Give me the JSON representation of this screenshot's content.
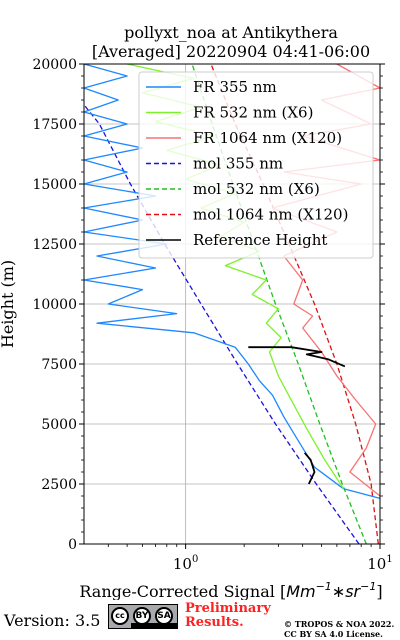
{
  "chart_data": {
    "type": "line",
    "title_line1": "pollyxt_noa at Antikythera",
    "title_line2": "[Averaged] 20220904 04:41-06:00",
    "xlabel_main": "Range-Corrected Signal [",
    "xlabel_unit": "Mm",
    "xlabel_exp1": "−1",
    "xlabel_mid": "∗sr",
    "xlabel_exp2": "−1",
    "xlabel_end": "]",
    "ylabel": "Height (m)",
    "xscale": "log",
    "xlim": [
      0.3,
      10
    ],
    "ylim": [
      0,
      20000
    ],
    "x_ticks": [
      {
        "value": 1,
        "base": "10",
        "exp": "0"
      },
      {
        "value": 10,
        "base": "10",
        "exp": "1"
      }
    ],
    "y_ticks": [
      0,
      2500,
      5000,
      7500,
      10000,
      12500,
      15000,
      17500,
      20000
    ],
    "y_tick_labels": [
      "0",
      "2500",
      "5000",
      "7500",
      "10000",
      "12500",
      "15000",
      "17500",
      "20000"
    ],
    "grid": true,
    "legend_position": "top-right",
    "legend": [
      {
        "label": "FR 355 nm",
        "color": "#1e88ff",
        "style": "solid"
      },
      {
        "label": "FR 532 nm (X6)",
        "color": "#7cf22b",
        "style": "solid"
      },
      {
        "label": "FR 1064 nm (X120)",
        "color": "#f87272",
        "style": "solid"
      },
      {
        "label": "mol 355 nm",
        "color": "#1c10e0",
        "style": "dashed"
      },
      {
        "label": "mol 532 nm (X6)",
        "color": "#20c020",
        "style": "dashed"
      },
      {
        "label": "mol 1064 nm (X120)",
        "color": "#e01010",
        "style": "dashed"
      },
      {
        "label": "Reference Height",
        "color": "#000000",
        "style": "solid"
      }
    ],
    "series": [
      {
        "name": "mol 355 nm",
        "color": "#1c10e0",
        "dash": true,
        "points": [
          [
            7.8,
            0
          ],
          [
            4.7,
            2500
          ],
          [
            2.9,
            5000
          ],
          [
            1.85,
            7500
          ],
          [
            1.2,
            10000
          ],
          [
            0.78,
            12500
          ],
          [
            0.52,
            15000
          ],
          [
            0.36,
            17500
          ],
          [
            0.3,
            18300
          ]
        ]
      },
      {
        "name": "mol 532 nm (X6)",
        "color": "#20c020",
        "dash": true,
        "points": [
          [
            8.5,
            0
          ],
          [
            6.4,
            2500
          ],
          [
            4.9,
            5000
          ],
          [
            3.8,
            7500
          ],
          [
            2.9,
            10000
          ],
          [
            2.25,
            12500
          ],
          [
            1.75,
            15000
          ],
          [
            1.37,
            17500
          ],
          [
            1.08,
            20000
          ]
        ]
      },
      {
        "name": "mol 1064 nm (X120)",
        "color": "#e01010",
        "dash": true,
        "points": [
          [
            9.8,
            0
          ],
          [
            9.0,
            2500
          ],
          [
            7.5,
            5000
          ],
          [
            6.0,
            7500
          ],
          [
            4.6,
            10000
          ],
          [
            3.4,
            12500
          ],
          [
            2.5,
            15000
          ],
          [
            1.8,
            17500
          ],
          [
            1.35,
            20000
          ]
        ]
      },
      {
        "name": "FR 355 nm",
        "color": "#1e88ff",
        "dash": false,
        "points": [
          [
            10,
            1900
          ],
          [
            6.5,
            2300
          ],
          [
            4.6,
            3200
          ],
          [
            3.8,
            4300
          ],
          [
            3.2,
            5300
          ],
          [
            2.8,
            6200
          ],
          [
            2.4,
            6800
          ],
          [
            2.1,
            7500
          ],
          [
            1.8,
            8200
          ],
          [
            1.1,
            8800
          ],
          [
            0.35,
            9200
          ],
          [
            0.9,
            9600
          ],
          [
            0.4,
            10000
          ],
          [
            0.6,
            10600
          ],
          [
            0.3,
            11000
          ],
          [
            0.7,
            11500
          ],
          [
            0.35,
            12000
          ],
          [
            0.8,
            12500
          ],
          [
            0.3,
            13000
          ],
          [
            0.6,
            13500
          ],
          [
            0.3,
            14000
          ],
          [
            0.7,
            14500
          ],
          [
            0.3,
            15000
          ],
          [
            0.5,
            15500
          ],
          [
            0.3,
            16000
          ],
          [
            0.6,
            16500
          ],
          [
            0.3,
            17000
          ],
          [
            0.5,
            17500
          ],
          [
            0.3,
            18000
          ],
          [
            0.45,
            18500
          ],
          [
            0.3,
            19000
          ],
          [
            0.5,
            19500
          ],
          [
            0.3,
            20000
          ]
        ]
      },
      {
        "name": "FR 532 nm (X6)",
        "color": "#7cf22b",
        "dash": false,
        "points": [
          [
            6.5,
            2300
          ],
          [
            5.2,
            3500
          ],
          [
            4.2,
            4800
          ],
          [
            3.6,
            5800
          ],
          [
            3.0,
            7000
          ],
          [
            2.7,
            8000
          ],
          [
            3.1,
            8600
          ],
          [
            2.6,
            9200
          ],
          [
            3.0,
            9800
          ],
          [
            2.2,
            10400
          ],
          [
            2.6,
            11000
          ],
          [
            1.6,
            11600
          ],
          [
            2.4,
            12200
          ],
          [
            1.5,
            12800
          ],
          [
            2.0,
            13400
          ],
          [
            1.2,
            14000
          ],
          [
            1.8,
            14600
          ],
          [
            1.0,
            15200
          ],
          [
            1.5,
            15800
          ],
          [
            0.8,
            16400
          ],
          [
            1.4,
            17000
          ],
          [
            0.7,
            17600
          ],
          [
            1.2,
            18200
          ],
          [
            0.6,
            18800
          ],
          [
            1.1,
            19400
          ],
          [
            0.5,
            20000
          ]
        ]
      },
      {
        "name": "FR 1064 nm (X120)",
        "color": "#f87272",
        "dash": false,
        "points": [
          [
            10,
            2000
          ],
          [
            7.0,
            3000
          ],
          [
            8.5,
            4000
          ],
          [
            9.5,
            5000
          ],
          [
            7.5,
            6000
          ],
          [
            6.0,
            7000
          ],
          [
            5.0,
            8000
          ],
          [
            4.0,
            9000
          ],
          [
            4.5,
            9500
          ],
          [
            3.6,
            10000
          ],
          [
            4.0,
            11000
          ],
          [
            3.2,
            12000
          ],
          [
            6.0,
            13000
          ],
          [
            2.8,
            14000
          ],
          [
            8.0,
            15000
          ],
          [
            3.2,
            15500
          ],
          [
            10,
            16000
          ],
          [
            4.0,
            17000
          ],
          [
            9.0,
            17500
          ],
          [
            5.0,
            18500
          ],
          [
            10,
            19000
          ],
          [
            6.0,
            20000
          ]
        ]
      },
      {
        "name": "Reference Height",
        "color": "#000000",
        "dash": false,
        "points": [
          [
            4.3,
            2500
          ],
          [
            4.6,
            3000
          ],
          [
            4.4,
            3500
          ],
          [
            4.1,
            3800
          ]
        ]
      },
      {
        "name": "Reference Height",
        "color": "#000000",
        "dash": false,
        "points": [
          [
            2.1,
            8200
          ],
          [
            3.5,
            8200
          ],
          [
            5.0,
            8000
          ],
          [
            4.2,
            7900
          ],
          [
            5.4,
            7700
          ],
          [
            6.6,
            7400
          ]
        ]
      }
    ]
  },
  "footer": {
    "version": "Version: 3.5",
    "badge_cc": "cc",
    "badge_by": "BY",
    "badge_sa": "SA",
    "preliminary": "Preliminary Results.",
    "copyright_line1": "© TROPOS & NOA 2022.",
    "copyright_line2": "CC BY SA 4.0 License."
  }
}
